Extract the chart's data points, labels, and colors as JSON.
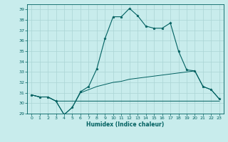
{
  "xlabel": "Humidex (Indice chaleur)",
  "background_color": "#c8ecec",
  "grid_color": "#aad4d4",
  "line_color": "#006060",
  "x_values": [
    0,
    1,
    2,
    3,
    4,
    5,
    6,
    7,
    8,
    9,
    10,
    11,
    12,
    13,
    14,
    15,
    16,
    17,
    18,
    19,
    20,
    21,
    22,
    23
  ],
  "curve1": [
    30.8,
    30.6,
    30.6,
    30.2,
    28.9,
    29.6,
    31.1,
    31.6,
    33.3,
    36.2,
    38.3,
    38.3,
    39.1,
    38.4,
    37.4,
    37.2,
    37.2,
    37.7,
    35.0,
    33.2,
    33.1,
    31.6,
    31.3,
    30.4
  ],
  "curve2": [
    30.8,
    30.6,
    30.6,
    30.2,
    28.9,
    29.6,
    31.0,
    31.3,
    31.6,
    31.8,
    32.0,
    32.1,
    32.3,
    32.4,
    32.5,
    32.6,
    32.7,
    32.8,
    32.9,
    33.0,
    33.1,
    31.6,
    31.3,
    30.4
  ],
  "curve3": [
    30.8,
    30.6,
    30.6,
    30.2,
    30.2,
    30.2,
    30.2,
    30.2,
    30.2,
    30.2,
    30.2,
    30.2,
    30.2,
    30.2,
    30.2,
    30.2,
    30.2,
    30.2,
    30.2,
    30.2,
    30.2,
    30.2,
    30.2,
    30.2
  ],
  "ylim": [
    29,
    39.5
  ],
  "xlim": [
    -0.5,
    23.5
  ],
  "yticks": [
    29,
    30,
    31,
    32,
    33,
    34,
    35,
    36,
    37,
    38,
    39
  ],
  "xticks": [
    0,
    1,
    2,
    3,
    4,
    5,
    6,
    7,
    8,
    9,
    10,
    11,
    12,
    13,
    14,
    15,
    16,
    17,
    18,
    19,
    20,
    21,
    22,
    23
  ]
}
